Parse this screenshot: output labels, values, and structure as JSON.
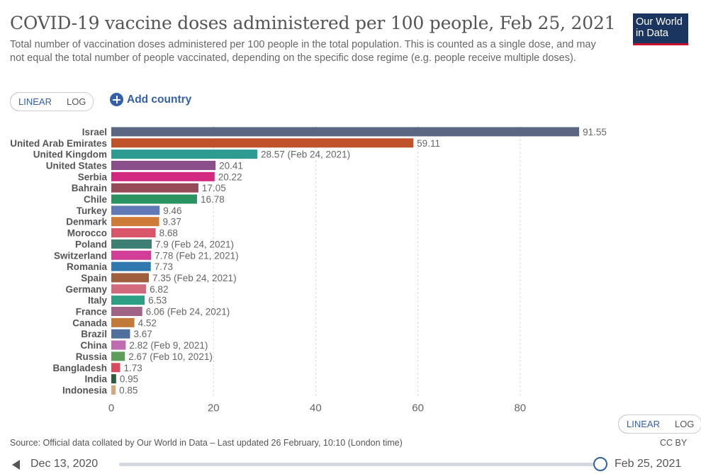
{
  "header": {
    "title": "COVID-19 vaccine doses administered per 100 people, Feb 25, 2021",
    "subtitle": "Total number of vaccination doses administered per 100 people in the total population. This is counted as a single dose, and may not equal the total number of people vaccinated, depending on the specific dose regime (e.g. people receive multiple doses).",
    "logo_line1": "Our World",
    "logo_line2": "in Data"
  },
  "controls": {
    "linear_label": "LINEAR",
    "log_label": "LOG",
    "add_country_label": "Add country"
  },
  "colors": {
    "accent": "#3360a9",
    "logo_bg": "#1a3560",
    "logo_stripe": "#c8102e"
  },
  "chart_data": {
    "type": "bar",
    "orientation": "horizontal",
    "xlim": [
      0,
      91.55
    ],
    "xticks": [
      "0",
      "20",
      "40",
      "60",
      "80"
    ],
    "xtick_values": [
      0,
      20,
      40,
      60,
      80
    ],
    "grid": true,
    "bars": [
      {
        "category": "Israel",
        "value": 91.55,
        "label": "91.55",
        "color": "#5b6782"
      },
      {
        "category": "United Arab Emirates",
        "value": 59.11,
        "label": "59.11",
        "color": "#c0522b"
      },
      {
        "category": "United Kingdom",
        "value": 28.57,
        "label": "28.57 (Feb 24, 2021)",
        "color": "#2e9b92"
      },
      {
        "category": "United States",
        "value": 20.41,
        "label": "20.41",
        "color": "#8a4e8a"
      },
      {
        "category": "Serbia",
        "value": 20.22,
        "label": "20.22",
        "color": "#d2287f"
      },
      {
        "category": "Bahrain",
        "value": 17.05,
        "label": "17.05",
        "color": "#974a57"
      },
      {
        "category": "Chile",
        "value": 16.78,
        "label": "16.78",
        "color": "#2a9361"
      },
      {
        "category": "Turkey",
        "value": 9.46,
        "label": "9.46",
        "color": "#6079b4"
      },
      {
        "category": "Denmark",
        "value": 9.37,
        "label": "9.37",
        "color": "#d07a38"
      },
      {
        "category": "Morocco",
        "value": 8.68,
        "label": "8.68",
        "color": "#d9556a"
      },
      {
        "category": "Poland",
        "value": 7.9,
        "label": "7.9 (Feb 24, 2021)",
        "color": "#3e7f74"
      },
      {
        "category": "Switzerland",
        "value": 7.78,
        "label": "7.78 (Feb 21, 2021)",
        "color": "#d23d98"
      },
      {
        "category": "Romania",
        "value": 7.73,
        "label": "7.73",
        "color": "#2f78b0"
      },
      {
        "category": "Spain",
        "value": 7.35,
        "label": "7.35 (Feb 24, 2021)",
        "color": "#a05e3c"
      },
      {
        "category": "Germany",
        "value": 6.82,
        "label": "6.82",
        "color": "#d3697c"
      },
      {
        "category": "Italy",
        "value": 6.53,
        "label": "6.53",
        "color": "#2d9f83"
      },
      {
        "category": "France",
        "value": 6.06,
        "label": "6.06 (Feb 24, 2021)",
        "color": "#a06386"
      },
      {
        "category": "Canada",
        "value": 4.52,
        "label": "4.52",
        "color": "#c27a3a"
      },
      {
        "category": "Brazil",
        "value": 3.67,
        "label": "3.67",
        "color": "#4f6f9c"
      },
      {
        "category": "China",
        "value": 2.82,
        "label": "2.82 (Feb 9, 2021)",
        "color": "#c06ab0"
      },
      {
        "category": "Russia",
        "value": 2.67,
        "label": "2.67 (Feb 10, 2021)",
        "color": "#5e9e5a"
      },
      {
        "category": "Bangladesh",
        "value": 1.73,
        "label": "1.73",
        "color": "#d94a5c"
      },
      {
        "category": "India",
        "value": 0.95,
        "label": "0.95",
        "color": "#2c5e3b"
      },
      {
        "category": "Indonesia",
        "value": 0.85,
        "label": "0.85",
        "color": "#d4a97f"
      }
    ]
  },
  "footer": {
    "source": "Source: Official data collated by Our World in Data – Last updated 26 February, 10:10 (London time)",
    "license": "CC BY"
  },
  "timeline": {
    "start_date": "Dec 13, 2020",
    "end_date": "Feb 25, 2021",
    "position": 1.0
  }
}
